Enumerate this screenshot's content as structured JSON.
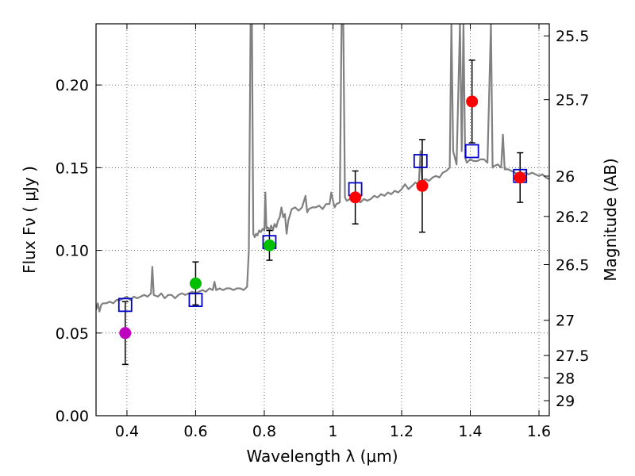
{
  "chart_data": {
    "type": "scatter",
    "xlabel": "Wavelength  λ (μm)",
    "ylabel": "Flux  Fν  ( μJy )",
    "y2label": "Magnitude (AB)",
    "xlim": [
      0.31,
      1.63
    ],
    "ylim": [
      0.0,
      0.237
    ],
    "grid": true,
    "x_ticks": [
      0.4,
      0.6,
      0.8,
      1.0,
      1.2,
      1.4,
      1.6
    ],
    "x_tick_labels": [
      "0.4",
      "0.6",
      "0.8",
      "1",
      "1.2",
      "1.4",
      "1.6"
    ],
    "y_ticks": [
      0.0,
      0.05,
      0.1,
      0.15,
      0.2
    ],
    "y_tick_labels": [
      "0.00",
      "0.05",
      "0.10",
      "0.15",
      "0.20"
    ],
    "y2_ticks": [
      {
        "label": "25.5",
        "flux": 0.2297
      },
      {
        "label": "25.7",
        "flux": 0.1911
      },
      {
        "label": "26",
        "flux": 0.1449
      },
      {
        "label": "26.2",
        "flux": 0.1205
      },
      {
        "label": "26.5",
        "flux": 0.0914
      },
      {
        "label": "27",
        "flux": 0.0577
      },
      {
        "label": "27.5",
        "flux": 0.0364
      },
      {
        "label": "28",
        "flux": 0.0229
      },
      {
        "label": "29",
        "flux": 0.0091
      }
    ],
    "observed": [
      {
        "x": 0.395,
        "y": 0.05,
        "err": 0.019,
        "color": "#bf00bf"
      },
      {
        "x": 0.6,
        "y": 0.08,
        "err": 0.013,
        "color": "#00bf00"
      },
      {
        "x": 0.815,
        "y": 0.103,
        "err": 0.009,
        "color": "#00bf00"
      },
      {
        "x": 1.065,
        "y": 0.132,
        "err": 0.016,
        "color": "#ff0000"
      },
      {
        "x": 1.26,
        "y": 0.139,
        "err": 0.028,
        "color": "#ff0000"
      },
      {
        "x": 1.405,
        "y": 0.19,
        "err": 0.025,
        "color": "#ff0000"
      },
      {
        "x": 1.545,
        "y": 0.144,
        "err": 0.015,
        "color": "#ff0000"
      }
    ],
    "model_photometry": [
      {
        "x": 0.395,
        "y": 0.067
      },
      {
        "x": 0.6,
        "y": 0.07
      },
      {
        "x": 0.815,
        "y": 0.105
      },
      {
        "x": 1.065,
        "y": 0.137
      },
      {
        "x": 1.255,
        "y": 0.154
      },
      {
        "x": 1.405,
        "y": 0.16
      },
      {
        "x": 1.545,
        "y": 0.145
      }
    ],
    "sed_spectrum": {
      "color": "#808080",
      "points": [
        [
          0.31,
          0.064
        ],
        [
          0.315,
          0.068
        ],
        [
          0.32,
          0.063
        ],
        [
          0.325,
          0.067
        ],
        [
          0.33,
          0.068
        ],
        [
          0.34,
          0.068
        ],
        [
          0.35,
          0.069
        ],
        [
          0.36,
          0.068
        ],
        [
          0.37,
          0.07
        ],
        [
          0.38,
          0.07
        ],
        [
          0.39,
          0.071
        ],
        [
          0.4,
          0.072
        ],
        [
          0.41,
          0.07
        ],
        [
          0.42,
          0.072
        ],
        [
          0.43,
          0.071
        ],
        [
          0.44,
          0.072
        ],
        [
          0.45,
          0.073
        ],
        [
          0.46,
          0.072
        ],
        [
          0.47,
          0.074
        ],
        [
          0.474,
          0.09
        ],
        [
          0.478,
          0.073
        ],
        [
          0.49,
          0.072
        ],
        [
          0.5,
          0.074
        ],
        [
          0.51,
          0.071
        ],
        [
          0.52,
          0.073
        ],
        [
          0.53,
          0.073
        ],
        [
          0.54,
          0.071
        ],
        [
          0.55,
          0.073
        ],
        [
          0.56,
          0.074
        ],
        [
          0.57,
          0.073
        ],
        [
          0.58,
          0.074
        ],
        [
          0.59,
          0.075
        ],
        [
          0.6,
          0.074
        ],
        [
          0.61,
          0.075
        ],
        [
          0.62,
          0.076
        ],
        [
          0.63,
          0.075
        ],
        [
          0.64,
          0.077
        ],
        [
          0.65,
          0.076
        ],
        [
          0.655,
          0.081
        ],
        [
          0.66,
          0.076
        ],
        [
          0.67,
          0.077
        ],
        [
          0.68,
          0.076
        ],
        [
          0.69,
          0.077
        ],
        [
          0.7,
          0.077
        ],
        [
          0.71,
          0.076
        ],
        [
          0.72,
          0.077
        ],
        [
          0.73,
          0.077
        ],
        [
          0.74,
          0.076
        ],
        [
          0.75,
          0.078
        ],
        [
          0.755,
          0.1
        ],
        [
          0.76,
          0.237
        ],
        [
          0.764,
          0.237
        ],
        [
          0.768,
          0.11
        ],
        [
          0.772,
          0.108
        ],
        [
          0.776,
          0.11
        ],
        [
          0.78,
          0.109
        ],
        [
          0.785,
          0.112
        ],
        [
          0.79,
          0.111
        ],
        [
          0.795,
          0.113
        ],
        [
          0.8,
          0.112
        ],
        [
          0.803,
          0.135
        ],
        [
          0.806,
          0.113
        ],
        [
          0.81,
          0.114
        ],
        [
          0.815,
          0.112
        ],
        [
          0.82,
          0.115
        ],
        [
          0.825,
          0.112
        ],
        [
          0.83,
          0.116
        ],
        [
          0.835,
          0.114
        ],
        [
          0.84,
          0.118
        ],
        [
          0.845,
          0.12
        ],
        [
          0.85,
          0.126
        ],
        [
          0.855,
          0.12
        ],
        [
          0.86,
          0.122
        ],
        [
          0.865,
          0.11
        ],
        [
          0.87,
          0.118
        ],
        [
          0.88,
          0.125
        ],
        [
          0.89,
          0.126
        ],
        [
          0.9,
          0.124
        ],
        [
          0.91,
          0.126
        ],
        [
          0.92,
          0.133
        ],
        [
          0.925,
          0.123
        ],
        [
          0.93,
          0.125
        ],
        [
          0.94,
          0.126
        ],
        [
          0.95,
          0.126
        ],
        [
          0.96,
          0.127
        ],
        [
          0.97,
          0.125
        ],
        [
          0.98,
          0.128
        ],
        [
          0.99,
          0.128
        ],
        [
          0.995,
          0.135
        ],
        [
          1.0,
          0.13
        ],
        [
          1.005,
          0.126
        ],
        [
          1.01,
          0.128
        ],
        [
          1.02,
          0.129
        ],
        [
          1.025,
          0.237
        ],
        [
          1.03,
          0.237
        ],
        [
          1.035,
          0.132
        ],
        [
          1.04,
          0.13
        ],
        [
          1.05,
          0.131
        ],
        [
          1.06,
          0.131
        ],
        [
          1.07,
          0.132
        ],
        [
          1.08,
          0.129
        ],
        [
          1.09,
          0.131
        ],
        [
          1.1,
          0.13
        ],
        [
          1.11,
          0.131
        ],
        [
          1.12,
          0.133
        ],
        [
          1.13,
          0.132
        ],
        [
          1.14,
          0.134
        ],
        [
          1.15,
          0.133
        ],
        [
          1.16,
          0.135
        ],
        [
          1.17,
          0.134
        ],
        [
          1.18,
          0.136
        ],
        [
          1.19,
          0.135
        ],
        [
          1.2,
          0.137
        ],
        [
          1.21,
          0.14
        ],
        [
          1.22,
          0.137
        ],
        [
          1.23,
          0.139
        ],
        [
          1.24,
          0.141
        ],
        [
          1.25,
          0.14
        ],
        [
          1.255,
          0.16
        ],
        [
          1.26,
          0.142
        ],
        [
          1.27,
          0.143
        ],
        [
          1.28,
          0.142
        ],
        [
          1.29,
          0.144
        ],
        [
          1.3,
          0.145
        ],
        [
          1.31,
          0.144
        ],
        [
          1.32,
          0.147
        ],
        [
          1.33,
          0.148
        ],
        [
          1.34,
          0.15
        ],
        [
          1.345,
          0.237
        ],
        [
          1.35,
          0.16
        ],
        [
          1.36,
          0.152
        ],
        [
          1.37,
          0.237
        ],
        [
          1.375,
          0.16
        ],
        [
          1.38,
          0.237
        ],
        [
          1.385,
          0.156
        ],
        [
          1.39,
          0.153
        ],
        [
          1.4,
          0.155
        ],
        [
          1.41,
          0.154
        ],
        [
          1.42,
          0.154
        ],
        [
          1.43,
          0.155
        ],
        [
          1.44,
          0.155
        ],
        [
          1.45,
          0.153
        ],
        [
          1.46,
          0.237
        ],
        [
          1.465,
          0.15
        ],
        [
          1.47,
          0.151
        ],
        [
          1.48,
          0.152
        ],
        [
          1.49,
          0.15
        ],
        [
          1.495,
          0.17
        ],
        [
          1.5,
          0.149
        ],
        [
          1.51,
          0.149
        ],
        [
          1.52,
          0.148
        ],
        [
          1.53,
          0.147
        ],
        [
          1.54,
          0.146
        ],
        [
          1.55,
          0.146
        ],
        [
          1.56,
          0.147
        ],
        [
          1.57,
          0.146
        ],
        [
          1.58,
          0.147
        ],
        [
          1.59,
          0.146
        ],
        [
          1.6,
          0.145
        ],
        [
          1.61,
          0.146
        ],
        [
          1.62,
          0.144
        ],
        [
          1.63,
          0.143
        ]
      ]
    }
  }
}
